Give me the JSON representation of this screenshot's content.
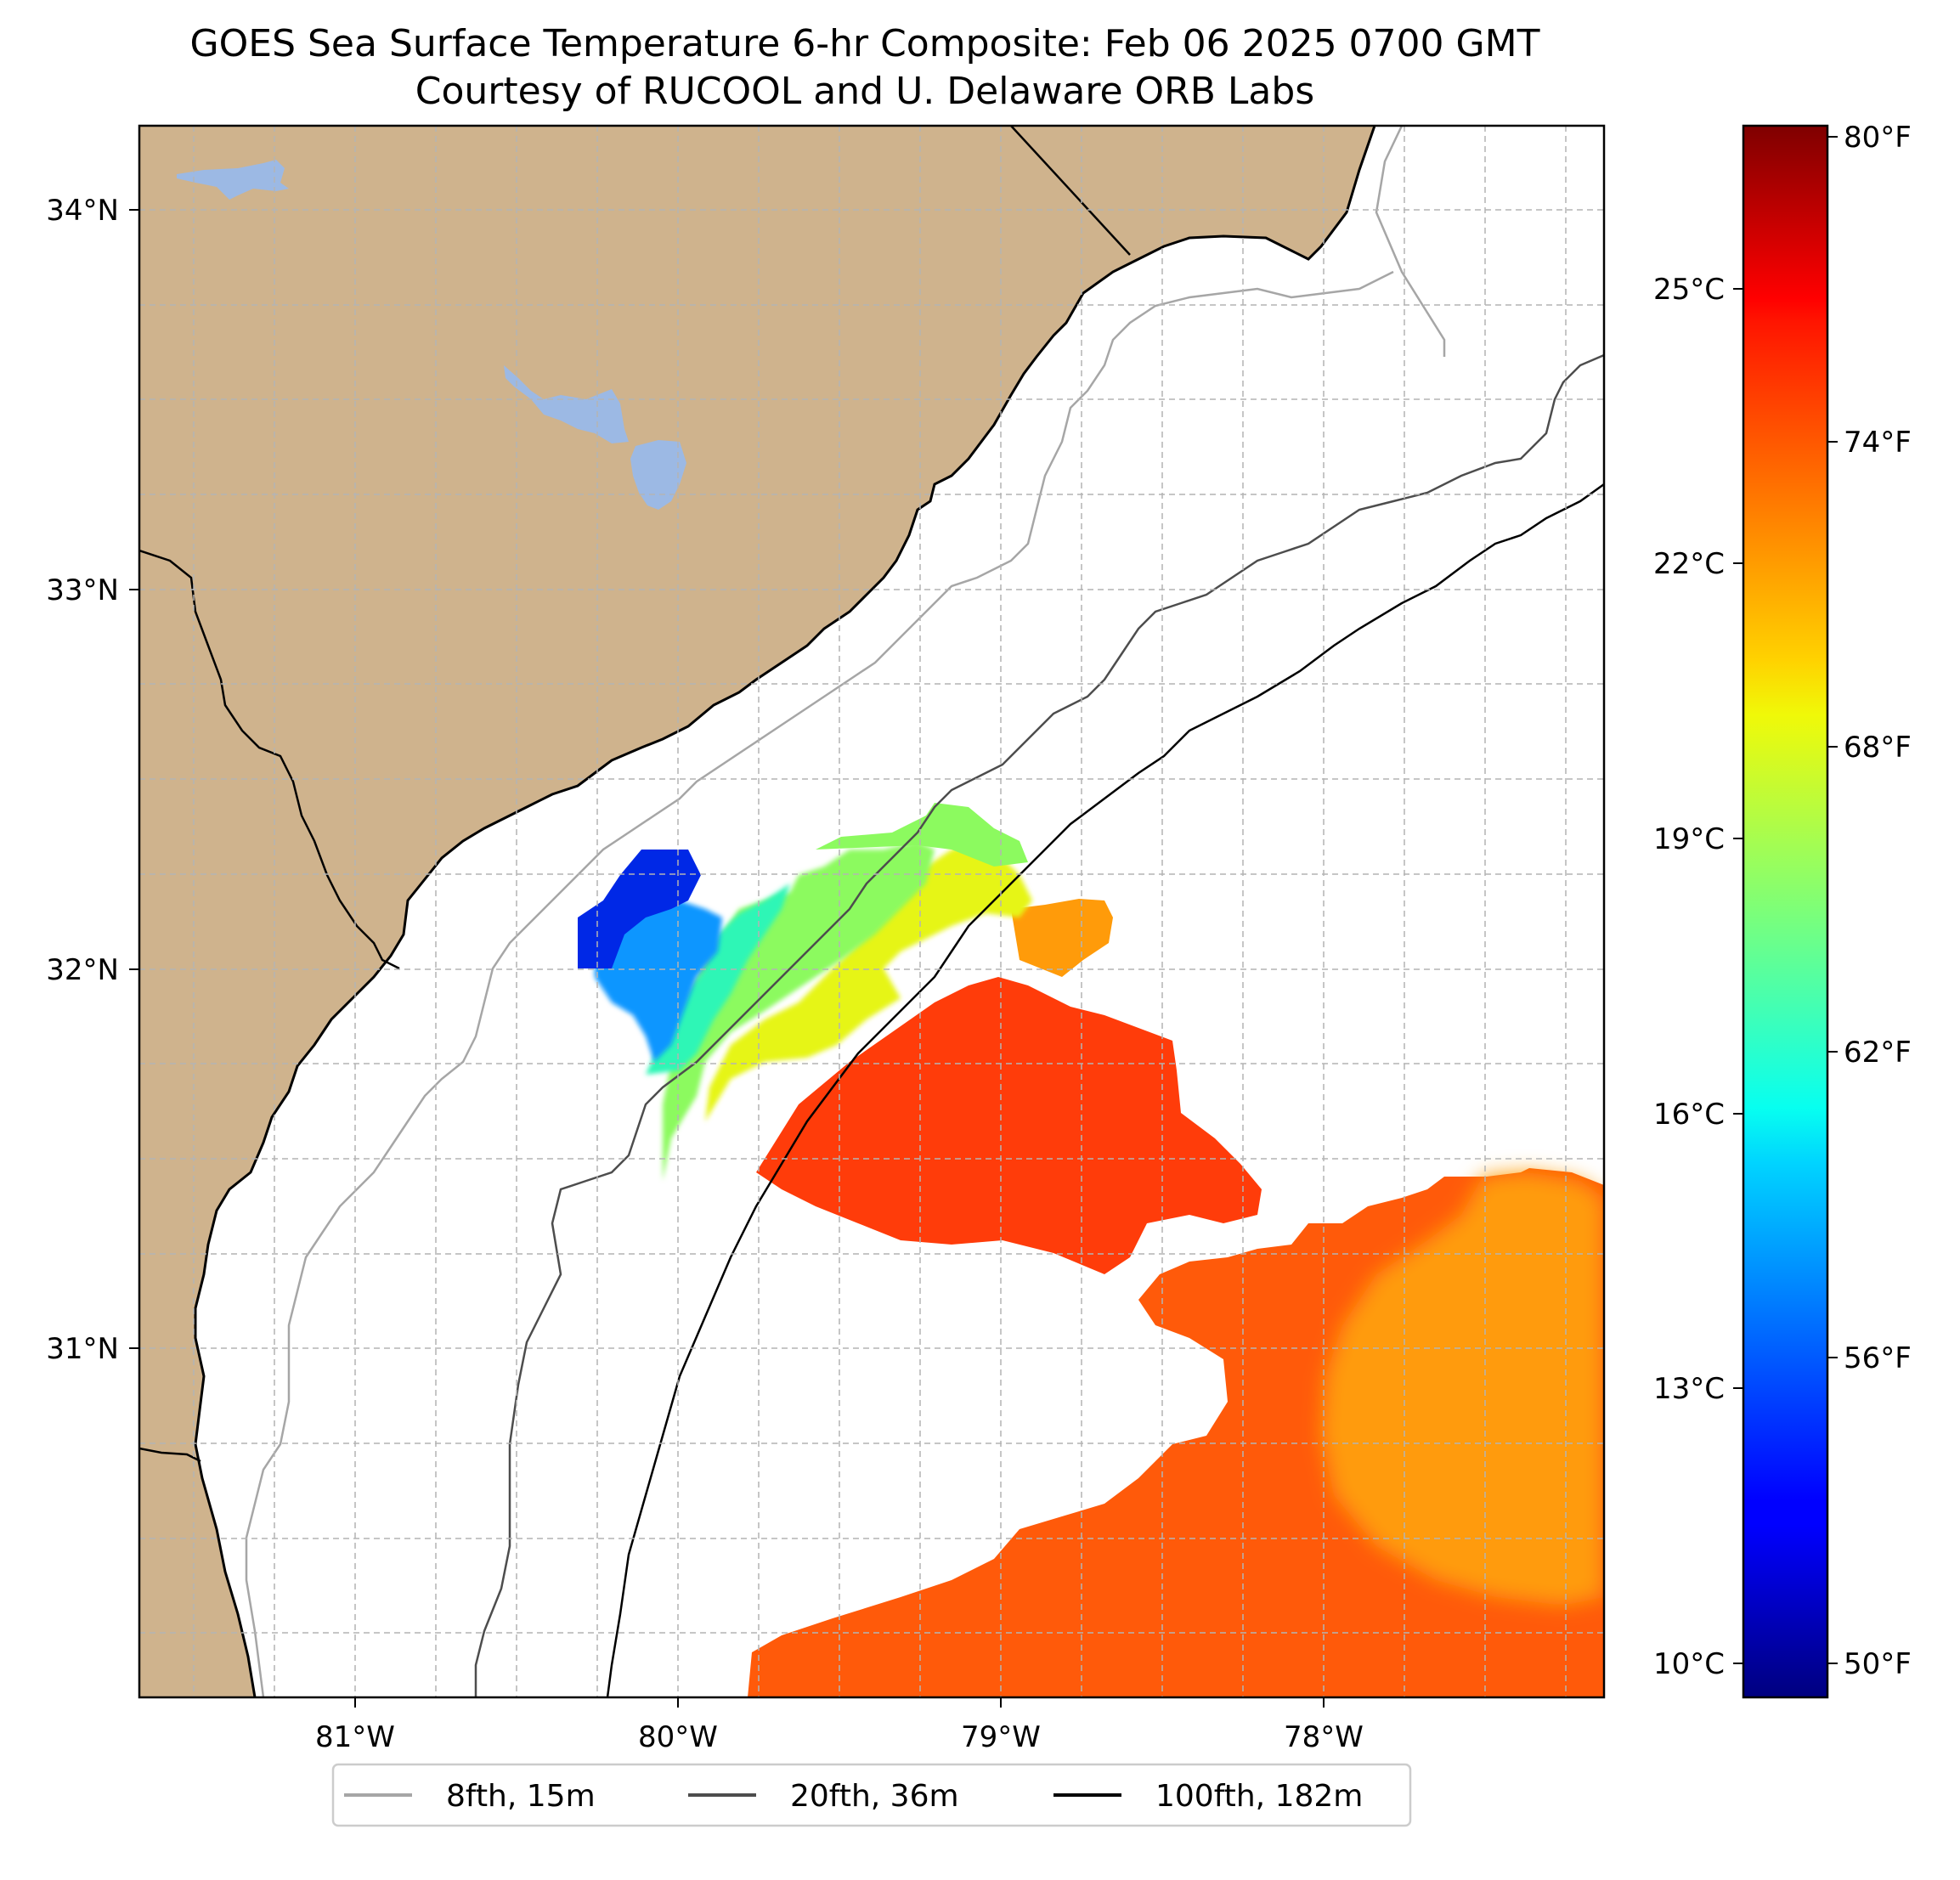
{
  "title": {
    "line1": "GOES Sea Surface Temperature 6-hr Composite: Feb 06 2025 0700 GMT",
    "line2": "Courtesy of RUCOOL and U. Delaware ORB Labs"
  },
  "colors": {
    "land": "#cfb38d",
    "lakes": "#9cb9e4",
    "coast": "#000000",
    "grid": "#b4b4b4",
    "contour_8": "#a6a6a6",
    "contour_20": "#4d4d4d",
    "contour_100": "#000000"
  },
  "map": {
    "lat_range": [
      30.0,
      34.2
    ],
    "lon_range": [
      -81.66,
      -77.1
    ],
    "lat_ticks": [
      "34°N",
      "33°N",
      "32°N",
      "31°N"
    ],
    "lon_ticks": [
      "81°W",
      "80°W",
      "79°W",
      "78°W"
    ]
  },
  "colorbar": {
    "colormap": "jet",
    "range_f": [
      49.5,
      80.5
    ],
    "celsius_ticks": [
      "25°C",
      "22°C",
      "19°C",
      "16°C",
      "13°C",
      "10°C"
    ],
    "fahrenheit_ticks": [
      "80°F",
      "74°F",
      "68°F",
      "62°F",
      "56°F",
      "50°F"
    ]
  },
  "legend": [
    {
      "label": "8fth, 15m",
      "color": "#a6a6a6"
    },
    {
      "label": "20fth, 36m",
      "color": "#4d4d4d"
    },
    {
      "label": "100fth, 182m",
      "color": "#000000"
    }
  ],
  "sst_regions": [
    {
      "name": "cold-plume-core",
      "temp_f": 52,
      "color": "#0028e6"
    },
    {
      "name": "cold-plume-edge",
      "temp_f": 58,
      "color": "#0a96ff"
    },
    {
      "name": "cool-band",
      "temp_f": 63,
      "color": "#2ef6b6"
    },
    {
      "name": "midshelf-green",
      "temp_f": 66,
      "color": "#8cfa5f"
    },
    {
      "name": "midshelf-yellow",
      "temp_f": 69,
      "color": "#e6f514"
    },
    {
      "name": "gulf-stream-front",
      "temp_f": 76,
      "color": "#ff3c0a"
    },
    {
      "name": "gulf-stream-south",
      "temp_f": 75,
      "color": "#ff5a0a"
    },
    {
      "name": "offshore-eddy",
      "temp_f": 73,
      "color": "#ff9b0a"
    }
  ]
}
